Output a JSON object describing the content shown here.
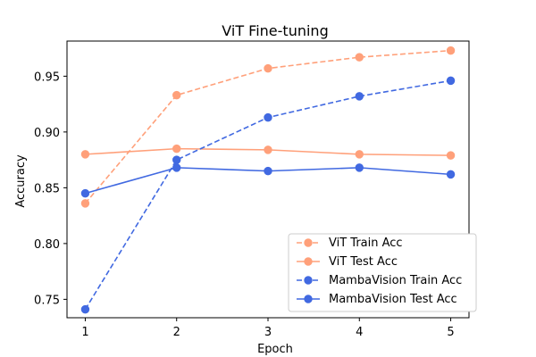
{
  "chart_data": {
    "type": "line",
    "title": "ViT Fine-tuning",
    "xlabel": "Epoch",
    "ylabel": "Accuracy",
    "x": [
      1,
      2,
      3,
      4,
      5
    ],
    "xlim": [
      0.8,
      5.2
    ],
    "ylim": [
      0.7335,
      0.9815
    ],
    "xticks": [
      1,
      2,
      3,
      4,
      5
    ],
    "yticks": [
      0.75,
      0.8,
      0.85,
      0.9,
      0.95
    ],
    "ytick_labels": [
      "0.75",
      "0.80",
      "0.85",
      "0.90",
      "0.95"
    ],
    "xtick_labels": [
      "1",
      "2",
      "3",
      "4",
      "5"
    ],
    "grid": false,
    "legend_position": "bottom-right",
    "series": [
      {
        "name": "ViT Train Acc",
        "values": [
          0.836,
          0.933,
          0.957,
          0.967,
          0.973
        ],
        "color": "#FFA07A",
        "line_style": "dashed",
        "marker": "circle"
      },
      {
        "name": "ViT Test Acc",
        "values": [
          0.88,
          0.885,
          0.884,
          0.88,
          0.879
        ],
        "color": "#FFA07A",
        "line_style": "solid",
        "marker": "circle"
      },
      {
        "name": "MambaVision Train Acc",
        "values": [
          0.741,
          0.875,
          0.913,
          0.932,
          0.946
        ],
        "color": "#4169E1",
        "line_style": "dashed",
        "marker": "circle"
      },
      {
        "name": "MambaVision Test Acc",
        "values": [
          0.845,
          0.868,
          0.865,
          0.868,
          0.862
        ],
        "color": "#4169E1",
        "line_style": "solid",
        "marker": "circle"
      }
    ]
  }
}
